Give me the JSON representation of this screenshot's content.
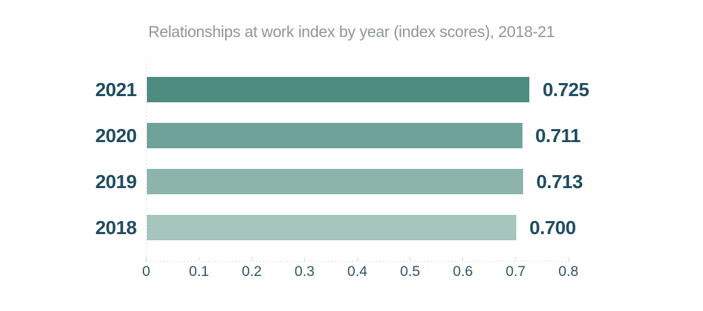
{
  "title": "Relationships at work index by year (index scores), 2018-21",
  "chart_data": {
    "type": "bar",
    "orientation": "horizontal",
    "title": "Relationships at work index by year (index scores), 2018-21",
    "categories": [
      "2021",
      "2020",
      "2019",
      "2018"
    ],
    "values": [
      0.725,
      0.711,
      0.713,
      0.7
    ],
    "value_labels": [
      "0.725",
      "0.711",
      "0.713",
      "0.700"
    ],
    "bar_colors": [
      "#4e8c80",
      "#6fa399",
      "#8db4ab",
      "#a6c5bc"
    ],
    "xlabel": "",
    "ylabel": "",
    "xlim": [
      0,
      0.8
    ],
    "x_ticks": [
      0,
      0.1,
      0.2,
      0.3,
      0.4,
      0.5,
      0.6,
      0.7,
      0.8
    ],
    "x_tick_labels": [
      "0",
      "0.1",
      "0.2",
      "0.3",
      "0.4",
      "0.5",
      "0.6",
      "0.7",
      "0.8"
    ],
    "grid": "none",
    "axis_style": "dotted light gray axis lines, left and bottom only",
    "legend_position": "none"
  },
  "colors": {
    "background": "#ffffff",
    "title_text": "#8e979b",
    "category_text": "#1f4d61",
    "value_text": "#1f4d61",
    "tick_text": "#2e5769",
    "axis_line": "#ccd2d4"
  }
}
